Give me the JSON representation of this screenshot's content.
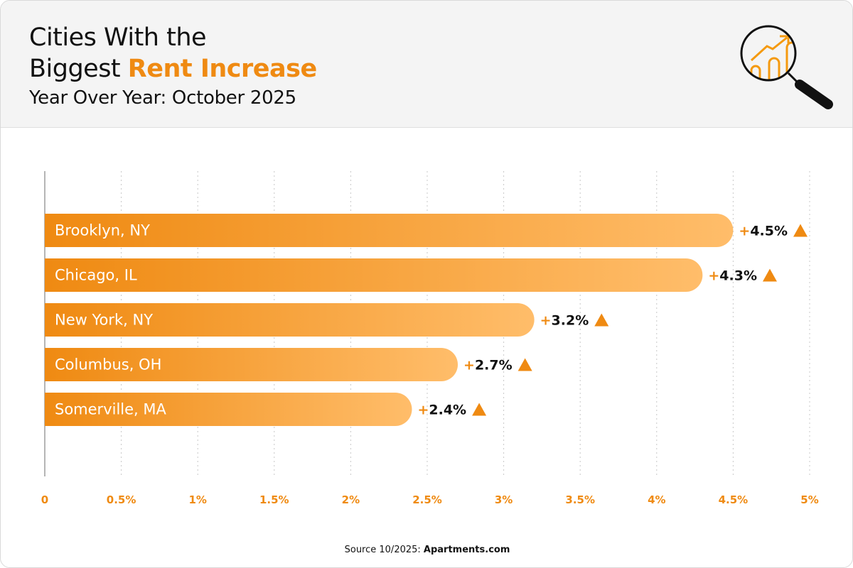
{
  "header": {
    "title_line1": "Cities With the",
    "title_line2_plain": "Biggest ",
    "title_line2_highlight": "Rent Increase",
    "subtitle": "Year Over Year: October 2025",
    "icon": "magnifier-growth-chart-icon"
  },
  "chart_data": {
    "type": "bar",
    "orientation": "horizontal",
    "categories": [
      "Brooklyn, NY",
      "Chicago, IL",
      "New York, NY",
      "Columbus, OH",
      "Somerville, MA"
    ],
    "values": [
      4.5,
      4.3,
      3.2,
      2.7,
      2.4
    ],
    "value_labels": [
      "+4.5%",
      "+4.3%",
      "+3.2%",
      "+2.7%",
      "+2.4%"
    ],
    "xlim": [
      0,
      5
    ],
    "x_ticks": [
      "0",
      "0.5%",
      "1%",
      "1.5%",
      "2%",
      "2.5%",
      "3%",
      "3.5%",
      "4%",
      "4.5%",
      "5%"
    ],
    "grid": "vertical dotted",
    "colors": {
      "bar_start": "#ef8a12",
      "bar_end": "#ffbd6a",
      "accent": "#ef8a12"
    }
  },
  "footer": {
    "source_prefix": "Source 10/2025: ",
    "source_name": "Apartments.com"
  }
}
